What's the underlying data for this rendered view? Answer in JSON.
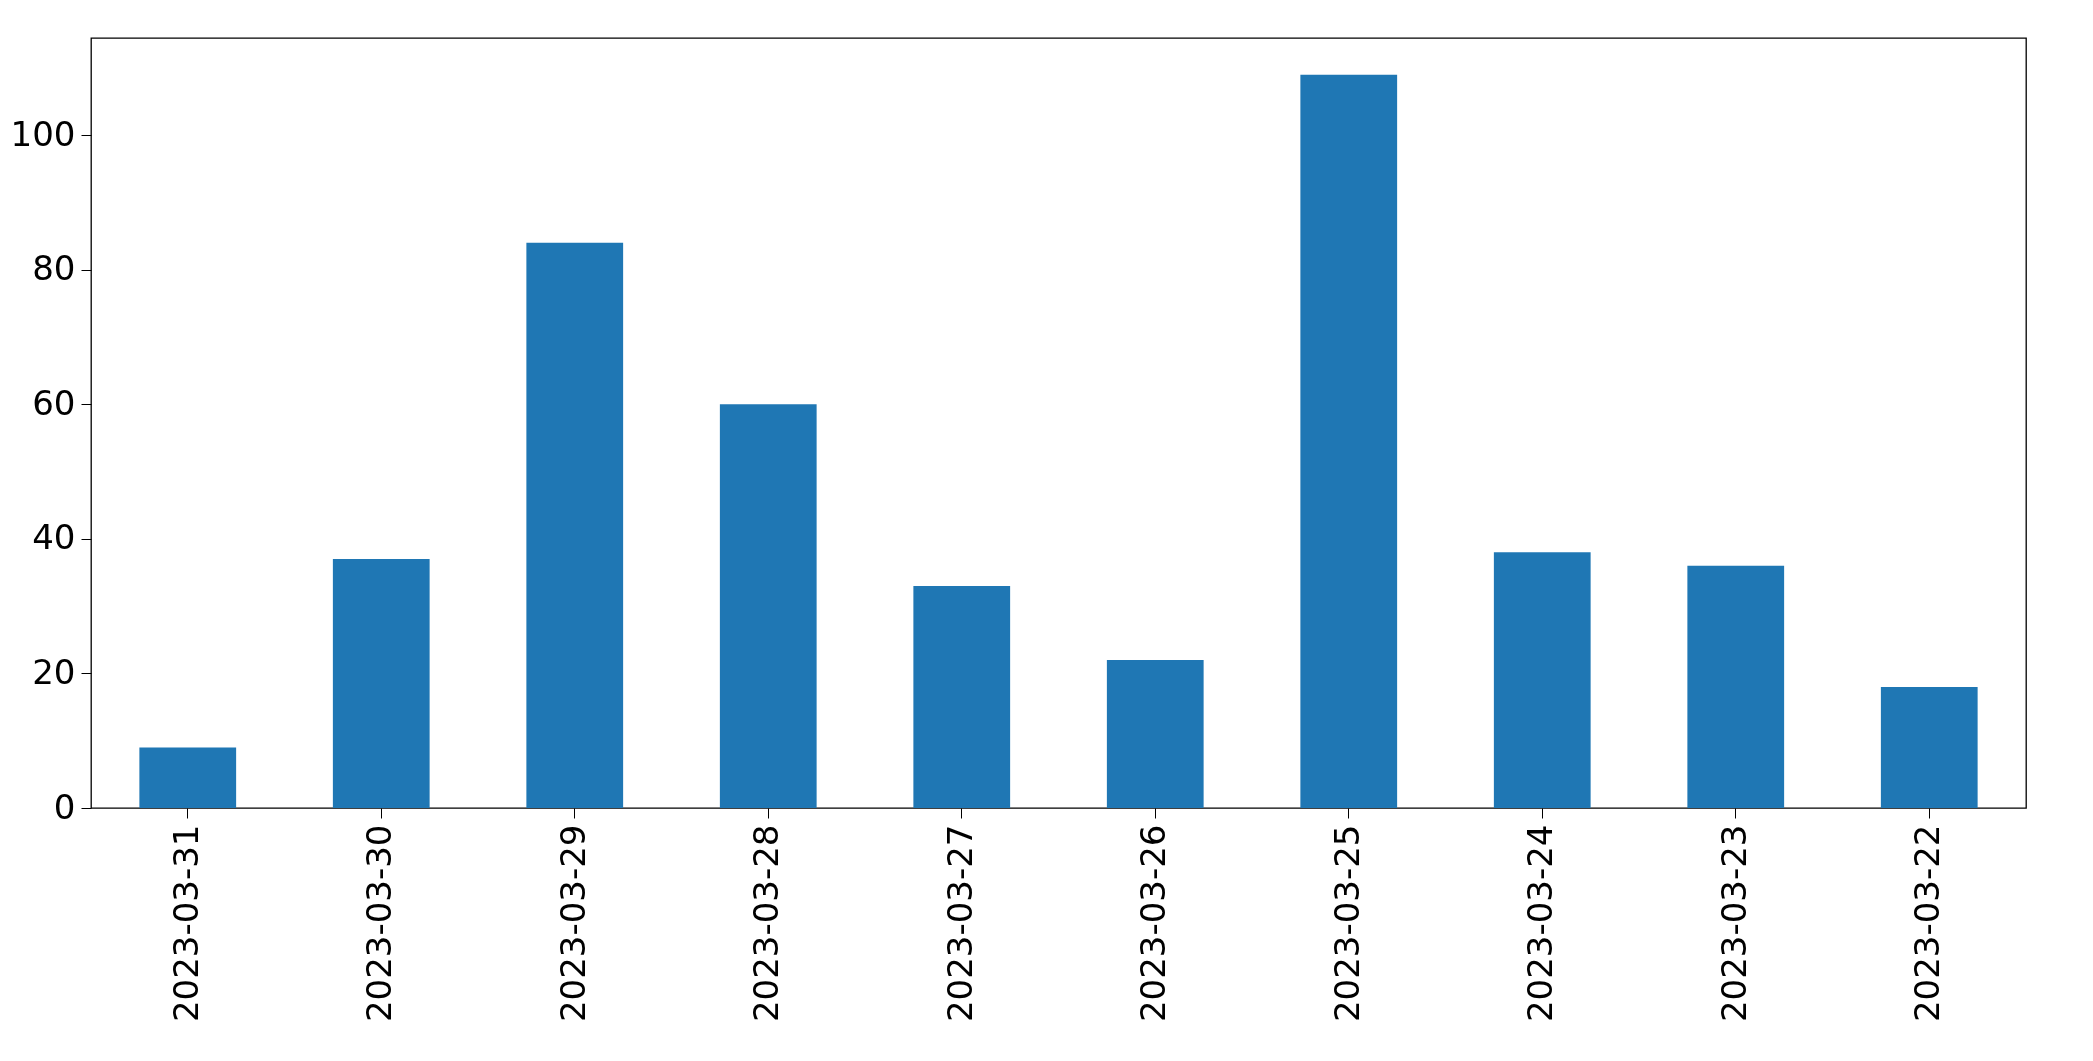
{
  "chart_data": {
    "type": "bar",
    "categories": [
      "2023-03-31",
      "2023-03-30",
      "2023-03-29",
      "2023-03-28",
      "2023-03-27",
      "2023-03-26",
      "2023-03-25",
      "2023-03-24",
      "2023-03-23",
      "2023-03-22"
    ],
    "values": [
      9,
      37,
      84,
      60,
      33,
      22,
      109,
      38,
      36,
      18
    ],
    "color": "#1f77b4",
    "ylim": [
      0,
      114.45
    ],
    "yticks": [
      0,
      20,
      40,
      60,
      80,
      100
    ],
    "grid": false
  }
}
